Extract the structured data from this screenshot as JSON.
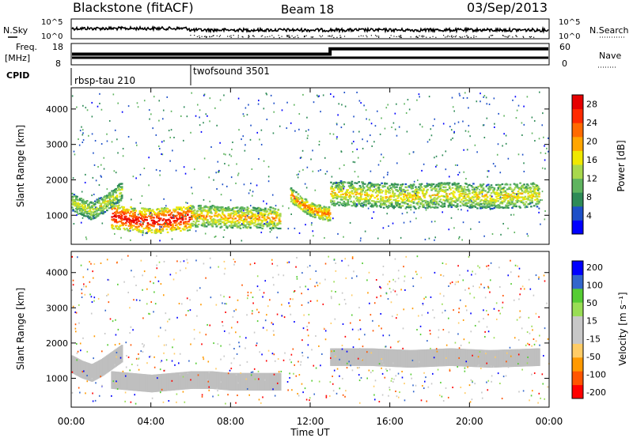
{
  "header": {
    "title": "Blackstone (fitACF)",
    "beam": "Beam 18",
    "date": "03/Sep/2013"
  },
  "top_panels": {
    "nsky_label": "N.Sky",
    "nsearch_label": "N.Search",
    "nsky_ticks": [
      "10^5",
      "10^0"
    ],
    "nsearch_ticks": [
      "10^5",
      "10^0"
    ],
    "freq_label_1": "Freq.",
    "freq_label_2": "[MHz]",
    "freq_ticks": [
      "18",
      "8"
    ],
    "nave_label": "Nave",
    "nave_ticks": [
      "60",
      "0"
    ],
    "cpid_label": "CPID",
    "cpid_segments": [
      {
        "name": "rbsp-tau 210",
        "start_hour": 0,
        "end_hour": 6
      },
      {
        "name": "twofsound 3501",
        "start_hour": 6,
        "end_hour": 24
      }
    ],
    "nave_step": {
      "before": 30,
      "after": 45,
      "change_hour": 13
    }
  },
  "colors": {
    "power_scale": [
      "#0000ff",
      "#1e50c8",
      "#2e8b57",
      "#5fb45f",
      "#a8d84c",
      "#f0e800",
      "#ffa500",
      "#ff6a00",
      "#ff2a00",
      "#e60000"
    ],
    "velocity_scale": [
      "#ff0000",
      "#ff5500",
      "#ff9900",
      "#ffcc66",
      "#c8c8c8",
      "#c8c8c8",
      "#99dd55",
      "#55cc33",
      "#3366cc",
      "#0000ff"
    ],
    "ground_scatter": "#bfbfbf"
  },
  "chart_data": [
    {
      "type": "heatmap",
      "panel": "power",
      "ylabel": "Slant Range [km]",
      "xlabel": "Time UT",
      "xlim": [
        0,
        24
      ],
      "ylim": [
        180,
        4600
      ],
      "yticks": [
        1000,
        2000,
        3000,
        4000
      ],
      "xticks": [
        "00:00",
        "04:00",
        "08:00",
        "12:00",
        "16:00",
        "20:00",
        "00:00"
      ],
      "colorbar_label": "Power [dB]",
      "colorbar_ticks": [
        "28",
        "24",
        "20",
        "16",
        "12",
        "8",
        "4"
      ],
      "colorbar_range": [
        0,
        30
      ],
      "echo_bands": [
        {
          "t": [
            0.0,
            0.5,
            1.0,
            1.5,
            2.0,
            2.5
          ],
          "r_center": [
            1400,
            1250,
            1150,
            1300,
            1500,
            1700
          ],
          "width": 250,
          "power": 14
        },
        {
          "t": [
            2.0,
            3.0,
            4.0,
            5.0,
            6.0
          ],
          "r_center": [
            1000,
            900,
            850,
            900,
            950
          ],
          "width": 350,
          "power": 26
        },
        {
          "t": [
            6.0,
            7.0,
            8.0,
            9.0,
            10.0,
            10.5
          ],
          "r_center": [
            1000,
            1000,
            950,
            950,
            950,
            900
          ],
          "width": 300,
          "power": 18
        },
        {
          "t": [
            11.0,
            11.5,
            12.0,
            12.5,
            13.0
          ],
          "r_center": [
            1600,
            1350,
            1200,
            1100,
            1050
          ],
          "width": 200,
          "power": 20
        },
        {
          "t": [
            13.0,
            15.0,
            17.0,
            19.0,
            21.0,
            23.5
          ],
          "r_center": [
            1650,
            1600,
            1550,
            1600,
            1550,
            1600
          ],
          "width": 350,
          "power": 16
        }
      ]
    },
    {
      "type": "heatmap",
      "panel": "velocity",
      "ylabel": "Slant Range [km]",
      "xlabel": "Time UT",
      "xlim": [
        0,
        24
      ],
      "ylim": [
        180,
        4600
      ],
      "yticks": [
        1000,
        2000,
        3000,
        4000
      ],
      "xticks": [
        "00:00",
        "04:00",
        "08:00",
        "12:00",
        "16:00",
        "20:00",
        "00:00"
      ],
      "colorbar_label": "Velocity [m s⁻¹]",
      "colorbar_ticks": [
        "200",
        "100",
        "50",
        "15",
        "-15",
        "-50",
        "-100",
        "-200"
      ],
      "colorbar_range": [
        -250,
        250
      ],
      "ground_scatter_bands": [
        {
          "t": [
            0.0,
            0.5,
            1.0,
            1.5,
            2.0,
            2.5
          ],
          "r_center": [
            1400,
            1250,
            1150,
            1300,
            1500,
            1700
          ],
          "width": 250
        },
        {
          "t": [
            2.0,
            3.0,
            4.0,
            5.0,
            6.0
          ],
          "r_center": [
            950,
            900,
            850,
            900,
            950
          ],
          "width": 250
        },
        {
          "t": [
            6.0,
            7.0,
            8.0,
            9.0,
            10.0,
            10.5
          ],
          "r_center": [
            950,
            950,
            900,
            900,
            900,
            900
          ],
          "width": 250
        },
        {
          "t": [
            13.0,
            15.0,
            17.0,
            19.0,
            21.0,
            23.5
          ],
          "r_center": [
            1600,
            1600,
            1550,
            1600,
            1550,
            1600
          ],
          "width": 250
        }
      ]
    }
  ]
}
